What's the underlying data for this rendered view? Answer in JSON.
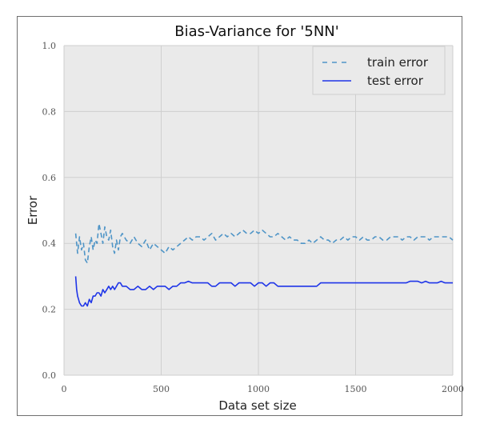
{
  "chart_data": {
    "type": "line",
    "title": "Bias-Variance for '5NN'",
    "xlabel": "Data set size",
    "ylabel": "Error",
    "xlim": [
      0,
      2000
    ],
    "ylim": [
      0.0,
      1.0
    ],
    "x_ticks": [
      "0",
      "500",
      "1000",
      "1500",
      "2000"
    ],
    "y_ticks": [
      "0.0",
      "0.2",
      "0.4",
      "0.6",
      "0.8",
      "1.0"
    ],
    "grid": true,
    "legend_position": "top-right",
    "background_color": "#eaeaea",
    "series": [
      {
        "name": "train error",
        "style": "dashed",
        "color": "#4f95c7",
        "x": [
          60,
          70,
          80,
          90,
          100,
          110,
          120,
          130,
          140,
          150,
          160,
          170,
          180,
          190,
          200,
          210,
          220,
          230,
          240,
          250,
          260,
          270,
          280,
          290,
          300,
          320,
          340,
          360,
          380,
          400,
          420,
          440,
          460,
          480,
          500,
          520,
          540,
          560,
          580,
          600,
          620,
          640,
          660,
          680,
          700,
          720,
          740,
          760,
          780,
          800,
          820,
          840,
          860,
          880,
          900,
          920,
          940,
          960,
          980,
          1000,
          1020,
          1040,
          1060,
          1080,
          1100,
          1120,
          1140,
          1160,
          1180,
          1200,
          1220,
          1240,
          1260,
          1280,
          1300,
          1320,
          1340,
          1360,
          1380,
          1400,
          1420,
          1440,
          1460,
          1480,
          1500,
          1520,
          1540,
          1560,
          1580,
          1600,
          1620,
          1640,
          1660,
          1680,
          1700,
          1720,
          1740,
          1760,
          1780,
          1800,
          1820,
          1840,
          1860,
          1880,
          1900,
          1920,
          1940,
          1960,
          1980,
          2000
        ],
        "values": [
          0.43,
          0.37,
          0.42,
          0.38,
          0.4,
          0.35,
          0.34,
          0.39,
          0.42,
          0.38,
          0.41,
          0.4,
          0.46,
          0.43,
          0.4,
          0.45,
          0.42,
          0.41,
          0.44,
          0.39,
          0.37,
          0.41,
          0.38,
          0.42,
          0.43,
          0.41,
          0.4,
          0.42,
          0.4,
          0.39,
          0.41,
          0.38,
          0.4,
          0.39,
          0.38,
          0.37,
          0.39,
          0.38,
          0.39,
          0.4,
          0.41,
          0.42,
          0.41,
          0.42,
          0.42,
          0.41,
          0.42,
          0.43,
          0.41,
          0.42,
          0.43,
          0.42,
          0.43,
          0.42,
          0.43,
          0.44,
          0.43,
          0.43,
          0.44,
          0.43,
          0.44,
          0.43,
          0.42,
          0.42,
          0.43,
          0.42,
          0.41,
          0.42,
          0.41,
          0.41,
          0.4,
          0.4,
          0.41,
          0.4,
          0.41,
          0.42,
          0.41,
          0.41,
          0.4,
          0.41,
          0.41,
          0.42,
          0.41,
          0.42,
          0.42,
          0.41,
          0.42,
          0.41,
          0.41,
          0.42,
          0.42,
          0.41,
          0.41,
          0.42,
          0.42,
          0.42,
          0.41,
          0.42,
          0.42,
          0.41,
          0.42,
          0.42,
          0.42,
          0.41,
          0.42,
          0.42,
          0.42,
          0.42,
          0.42,
          0.41
        ]
      },
      {
        "name": "test error",
        "style": "solid",
        "color": "#1f35e8",
        "x": [
          60,
          65,
          70,
          75,
          80,
          90,
          100,
          110,
          120,
          130,
          140,
          150,
          160,
          170,
          180,
          190,
          200,
          210,
          220,
          230,
          240,
          250,
          260,
          270,
          280,
          290,
          300,
          320,
          340,
          360,
          380,
          400,
          420,
          440,
          460,
          480,
          500,
          520,
          540,
          560,
          580,
          600,
          620,
          640,
          660,
          680,
          700,
          720,
          740,
          760,
          780,
          800,
          820,
          840,
          860,
          880,
          900,
          920,
          940,
          960,
          980,
          1000,
          1020,
          1040,
          1060,
          1080,
          1100,
          1120,
          1140,
          1160,
          1180,
          1200,
          1220,
          1240,
          1260,
          1280,
          1300,
          1320,
          1340,
          1360,
          1380,
          1400,
          1420,
          1440,
          1460,
          1480,
          1500,
          1520,
          1540,
          1560,
          1580,
          1600,
          1620,
          1640,
          1660,
          1680,
          1700,
          1720,
          1740,
          1760,
          1780,
          1800,
          1820,
          1840,
          1860,
          1880,
          1900,
          1920,
          1940,
          1960,
          1980,
          2000
        ],
        "values": [
          0.3,
          0.26,
          0.24,
          0.23,
          0.22,
          0.21,
          0.21,
          0.22,
          0.21,
          0.23,
          0.22,
          0.24,
          0.24,
          0.25,
          0.25,
          0.24,
          0.26,
          0.25,
          0.26,
          0.27,
          0.26,
          0.27,
          0.26,
          0.27,
          0.28,
          0.28,
          0.27,
          0.27,
          0.26,
          0.26,
          0.27,
          0.26,
          0.26,
          0.27,
          0.26,
          0.27,
          0.27,
          0.27,
          0.26,
          0.27,
          0.27,
          0.28,
          0.28,
          0.285,
          0.28,
          0.28,
          0.28,
          0.28,
          0.28,
          0.27,
          0.27,
          0.28,
          0.28,
          0.28,
          0.28,
          0.27,
          0.28,
          0.28,
          0.28,
          0.28,
          0.27,
          0.28,
          0.28,
          0.27,
          0.28,
          0.28,
          0.27,
          0.27,
          0.27,
          0.27,
          0.27,
          0.27,
          0.27,
          0.27,
          0.27,
          0.27,
          0.27,
          0.28,
          0.28,
          0.28,
          0.28,
          0.28,
          0.28,
          0.28,
          0.28,
          0.28,
          0.28,
          0.28,
          0.28,
          0.28,
          0.28,
          0.28,
          0.28,
          0.28,
          0.28,
          0.28,
          0.28,
          0.28,
          0.28,
          0.28,
          0.285,
          0.285,
          0.285,
          0.28,
          0.285,
          0.28,
          0.28,
          0.28,
          0.285,
          0.28,
          0.28,
          0.28
        ]
      }
    ]
  }
}
